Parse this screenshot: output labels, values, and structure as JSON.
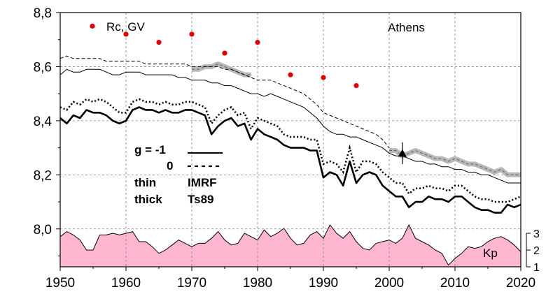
{
  "chart_data": {
    "type": "line",
    "station": "Athens",
    "xlim": [
      1950,
      2020
    ],
    "ylim": [
      7.86,
      8.8
    ],
    "x_ticks": [
      1950,
      1960,
      1970,
      1980,
      1990,
      2000,
      2010,
      2020
    ],
    "x_tick_labels": [
      "1950",
      "1960",
      "1970",
      "1980",
      "1990",
      "2000",
      "2010",
      "2020"
    ],
    "y_ticks": [
      8.0,
      8.2,
      8.4,
      8.6,
      8.8
    ],
    "y_tick_labels": [
      "8,0",
      "8,2",
      "8,4",
      "8,6",
      "8,8"
    ],
    "kp_axis": {
      "label": "Kp",
      "ticks": [
        1,
        2,
        3
      ],
      "tick_labels": [
        "1",
        "2",
        "3"
      ]
    },
    "grid": true,
    "legend": {
      "points_label": "Rc, GV",
      "g_line1": "g  = -1",
      "g_line2": "0",
      "thin_label": "thin",
      "thin_model": "IMRF",
      "thick_label": "thick",
      "thick_model": "Ts89"
    },
    "series": [
      {
        "name": "thin g=-1 (IMRF)",
        "style": "thin-solid",
        "x": [
          1950,
          1951,
          1952,
          1953,
          1954,
          1955,
          1956,
          1957,
          1958,
          1959,
          1960,
          1961,
          1962,
          1963,
          1964,
          1965,
          1966,
          1967,
          1968,
          1969,
          1970,
          1971,
          1972,
          1973,
          1974,
          1975,
          1976,
          1977,
          1978,
          1979,
          1980,
          1981,
          1982,
          1983,
          1984,
          1985,
          1986,
          1987,
          1988,
          1989,
          1990,
          1991,
          1992,
          1993,
          1994,
          1995,
          1996,
          1997,
          1998,
          1999,
          2000,
          2001,
          2002,
          2003,
          2004,
          2005,
          2006,
          2007,
          2008,
          2009,
          2010,
          2011,
          2012,
          2013,
          2014,
          2015,
          2016,
          2017,
          2018,
          2019,
          2020
        ],
        "y": [
          8.57,
          8.59,
          8.58,
          8.58,
          8.59,
          8.59,
          8.59,
          8.58,
          8.57,
          8.57,
          8.58,
          8.58,
          8.58,
          8.57,
          8.57,
          8.57,
          8.57,
          8.57,
          8.56,
          8.56,
          8.55,
          8.55,
          8.55,
          8.54,
          8.54,
          8.53,
          8.53,
          8.52,
          8.51,
          8.5,
          8.5,
          8.49,
          8.5,
          8.49,
          8.48,
          8.47,
          8.46,
          8.45,
          8.43,
          8.41,
          8.38,
          8.36,
          8.35,
          8.35,
          8.34,
          8.34,
          8.33,
          8.32,
          8.31,
          8.3,
          8.28,
          8.27,
          8.27,
          8.26,
          8.25,
          8.25,
          8.24,
          8.24,
          8.23,
          8.23,
          8.22,
          8.22,
          8.21,
          8.21,
          8.2,
          8.2,
          8.19,
          8.18,
          8.17,
          8.17,
          8.17
        ]
      },
      {
        "name": "thin g=0 (IMRF)",
        "style": "thin-dashed",
        "x": [
          1950,
          1951,
          1952,
          1953,
          1954,
          1955,
          1956,
          1957,
          1958,
          1959,
          1960,
          1961,
          1962,
          1963,
          1964,
          1965,
          1966,
          1967,
          1968,
          1969,
          1970,
          1971,
          1972,
          1973,
          1974,
          1975,
          1976,
          1977,
          1978,
          1979,
          1980,
          1981,
          1982,
          1983,
          1984,
          1985,
          1986,
          1987,
          1988,
          1989,
          1990,
          1991,
          1992,
          1993,
          1994,
          1995,
          1996,
          1997,
          1998,
          1999,
          2000
        ],
        "y": [
          8.63,
          8.64,
          8.63,
          8.63,
          8.63,
          8.63,
          8.63,
          8.62,
          8.62,
          8.62,
          8.62,
          8.62,
          8.62,
          8.61,
          8.61,
          8.61,
          8.61,
          8.61,
          8.61,
          8.61,
          8.6,
          8.6,
          8.6,
          8.6,
          8.6,
          8.59,
          8.59,
          8.58,
          8.57,
          8.56,
          8.55,
          8.55,
          8.55,
          8.54,
          8.53,
          8.52,
          8.51,
          8.5,
          8.48,
          8.46,
          8.43,
          8.42,
          8.41,
          8.4,
          8.39,
          8.38,
          8.37,
          8.36,
          8.35,
          8.33,
          8.3
        ]
      },
      {
        "name": "thick g=-1 (Ts89)",
        "style": "thick-solid",
        "x": [
          1950,
          1951,
          1952,
          1953,
          1954,
          1955,
          1956,
          1957,
          1958,
          1959,
          1960,
          1961,
          1962,
          1963,
          1964,
          1965,
          1966,
          1967,
          1968,
          1969,
          1970,
          1971,
          1972,
          1973,
          1974,
          1975,
          1976,
          1977,
          1978,
          1979,
          1980,
          1981,
          1982,
          1983,
          1984,
          1985,
          1986,
          1987,
          1988,
          1989,
          1990,
          1991,
          1992,
          1993,
          1994,
          1995,
          1996,
          1997,
          1998,
          1999,
          2000,
          2001,
          2002,
          2003,
          2004,
          2005,
          2006,
          2007,
          2008,
          2009,
          2010,
          2011,
          2012,
          2013,
          2014,
          2015,
          2016,
          2017,
          2018,
          2019,
          2020
        ],
        "y": [
          8.41,
          8.39,
          8.42,
          8.41,
          8.44,
          8.43,
          8.43,
          8.42,
          8.4,
          8.39,
          8.4,
          8.44,
          8.45,
          8.44,
          8.44,
          8.43,
          8.44,
          8.43,
          8.43,
          8.44,
          8.44,
          8.43,
          8.42,
          8.35,
          8.38,
          8.4,
          8.41,
          8.38,
          8.39,
          8.33,
          8.37,
          8.35,
          8.34,
          8.33,
          8.31,
          8.3,
          8.3,
          8.3,
          8.29,
          8.29,
          8.19,
          8.21,
          8.2,
          8.16,
          8.25,
          8.17,
          8.2,
          8.21,
          8.2,
          8.16,
          8.14,
          8.12,
          8.12,
          8.08,
          8.1,
          8.1,
          8.12,
          8.11,
          8.11,
          8.1,
          8.12,
          8.12,
          8.1,
          8.08,
          8.07,
          8.07,
          8.06,
          8.06,
          8.09,
          8.08,
          8.09
        ]
      },
      {
        "name": "thick g=0 (Ts89)",
        "style": "thick-dotted",
        "x": [
          1950,
          1951,
          1952,
          1953,
          1954,
          1955,
          1956,
          1957,
          1958,
          1959,
          1960,
          1961,
          1962,
          1963,
          1964,
          1965,
          1966,
          1967,
          1968,
          1969,
          1970,
          1971,
          1972,
          1973,
          1974,
          1975,
          1976,
          1977,
          1978,
          1979,
          1980,
          1981,
          1982,
          1983,
          1984,
          1985,
          1986,
          1987,
          1988,
          1989,
          1990,
          1991,
          1992,
          1993,
          1994,
          1995,
          1996,
          1997,
          1998,
          1999,
          2000,
          2001,
          2002,
          2003,
          2004,
          2005,
          2006,
          2007,
          2008,
          2009,
          2010,
          2011,
          2012,
          2013,
          2014,
          2015,
          2016,
          2017,
          2018,
          2019,
          2020
        ],
        "y": [
          8.45,
          8.44,
          8.47,
          8.46,
          8.48,
          8.47,
          8.48,
          8.47,
          8.45,
          8.43,
          8.43,
          8.47,
          8.48,
          8.47,
          8.47,
          8.46,
          8.47,
          8.46,
          8.46,
          8.47,
          8.47,
          8.46,
          8.45,
          8.39,
          8.42,
          8.44,
          8.45,
          8.42,
          8.43,
          8.37,
          8.41,
          8.4,
          8.39,
          8.38,
          8.35,
          8.34,
          8.34,
          8.34,
          8.33,
          8.33,
          8.24,
          8.25,
          8.24,
          8.21,
          8.3,
          8.21,
          8.25,
          8.25,
          8.24,
          8.21,
          8.19,
          8.17,
          8.17,
          8.13,
          8.15,
          8.15,
          8.16,
          8.15,
          8.15,
          8.14,
          8.16,
          8.16,
          8.14,
          8.12,
          8.11,
          8.11,
          8.1,
          8.1,
          8.1,
          8.11,
          8.12
        ]
      },
      {
        "name": "gray band",
        "style": "gray-band",
        "x": [
          1970,
          1971,
          1972,
          1973,
          1974,
          1975,
          1976,
          1977,
          1978,
          1979
        ],
        "y": [
          8.59,
          8.59,
          8.6,
          8.6,
          8.61,
          8.6,
          8.59,
          8.58,
          8.57,
          8.57
        ]
      },
      {
        "name": "gray band 2000-2020",
        "style": "gray-band",
        "x": [
          2000,
          2001,
          2002,
          2003,
          2004,
          2005,
          2006,
          2007,
          2008,
          2009,
          2010,
          2011,
          2012,
          2013,
          2014,
          2015,
          2016,
          2017,
          2018,
          2019,
          2020
        ],
        "y": [
          8.29,
          8.29,
          8.27,
          8.28,
          8.29,
          8.28,
          8.27,
          8.26,
          8.26,
          8.25,
          8.26,
          8.25,
          8.24,
          8.24,
          8.23,
          8.22,
          8.21,
          8.22,
          8.2,
          8.2,
          8.2
        ]
      }
    ],
    "rc_points": {
      "x": [
        1955,
        1960,
        1965,
        1970,
        1975,
        1980,
        1985,
        1990,
        1995
      ],
      "y": [
        8.75,
        8.72,
        8.69,
        8.72,
        8.65,
        8.69,
        8.57,
        8.56,
        8.53
      ]
    },
    "marker_2002": {
      "x": 2002,
      "y": 8.28,
      "err_low": 8.24,
      "err_high": 8.32
    },
    "kp": {
      "x": [
        1950,
        1951,
        1952,
        1953,
        1954,
        1955,
        1956,
        1957,
        1958,
        1959,
        1960,
        1961,
        1962,
        1963,
        1964,
        1965,
        1966,
        1967,
        1968,
        1969,
        1970,
        1971,
        1972,
        1973,
        1974,
        1975,
        1976,
        1977,
        1978,
        1979,
        1980,
        1981,
        1982,
        1983,
        1984,
        1985,
        1986,
        1987,
        1988,
        1989,
        1990,
        1991,
        1992,
        1993,
        1994,
        1995,
        1996,
        1997,
        1998,
        1999,
        2000,
        2001,
        2002,
        2003,
        2004,
        2005,
        2006,
        2007,
        2008,
        2009,
        2010,
        2011,
        2012,
        2013,
        2014,
        2015,
        2016,
        2017,
        2018,
        2019,
        2020
      ],
      "y": [
        2.8,
        3.1,
        2.9,
        2.6,
        2.0,
        2.0,
        2.9,
        2.9,
        3.0,
        2.9,
        3.0,
        3.1,
        2.5,
        2.5,
        2.2,
        1.8,
        2.0,
        2.3,
        2.6,
        2.4,
        2.2,
        2.4,
        2.4,
        2.7,
        3.1,
        2.6,
        2.3,
        2.4,
        3.0,
        2.8,
        2.6,
        3.2,
        2.8,
        3.0,
        3.3,
        2.7,
        2.3,
        2.4,
        2.9,
        3.1,
        2.7,
        3.5,
        3.0,
        2.7,
        3.1,
        2.5,
        2.1,
        2.0,
        2.4,
        2.5,
        2.6,
        2.4,
        2.7,
        3.5,
        2.7,
        2.5,
        2.3,
        2.0,
        1.8,
        1.1,
        1.5,
        1.8,
        2.2,
        2.1,
        2.2,
        2.5,
        2.7,
        2.8,
        2.6,
        2.3,
        1.9
      ]
    },
    "colors": {
      "kp_fill": "#ffb6d1",
      "points": "#e00000",
      "gray_band": "#b8b8b8",
      "lines": "#000000",
      "grid": "#808080"
    }
  }
}
